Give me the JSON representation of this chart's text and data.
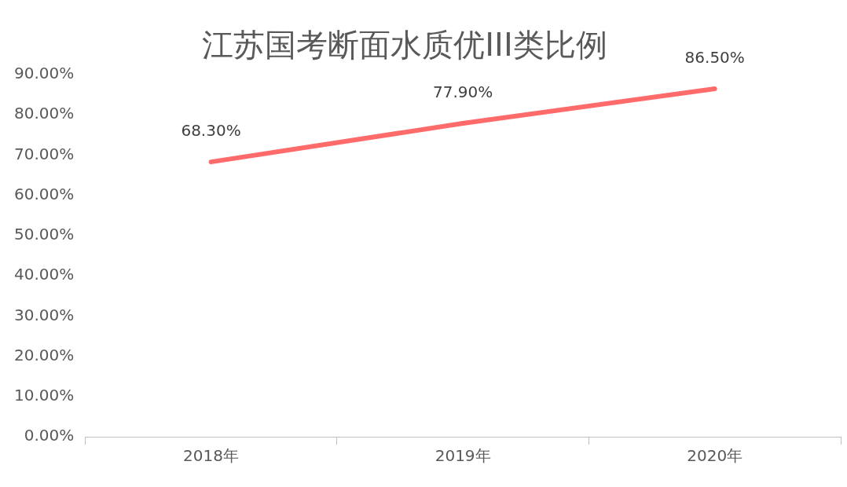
{
  "chart_data": {
    "type": "line",
    "title": "江苏国考断面水质优III类比例",
    "categories": [
      "2018年",
      "2019年",
      "2020年"
    ],
    "series": [
      {
        "color": "#ff6b6b",
        "values": [
          68.3,
          77.9,
          86.5
        ],
        "value_labels": [
          "68.30%",
          "77.90%",
          "86.50%"
        ]
      }
    ],
    "ylim": [
      0,
      90
    ],
    "yticks": [
      {
        "value": 0,
        "label": "0.00%"
      },
      {
        "value": 10,
        "label": "10.00%"
      },
      {
        "value": 20,
        "label": "20.00%"
      },
      {
        "value": 30,
        "label": "30.00%"
      },
      {
        "value": 40,
        "label": "40.00%"
      },
      {
        "value": 50,
        "label": "50.00%"
      },
      {
        "value": 60,
        "label": "60.00%"
      },
      {
        "value": 70,
        "label": "70.00%"
      },
      {
        "value": 80,
        "label": "80.00%"
      },
      {
        "value": 90,
        "label": "90.00%"
      }
    ],
    "marker": "none",
    "line_style": "solid",
    "legend": false,
    "grid": false
  }
}
